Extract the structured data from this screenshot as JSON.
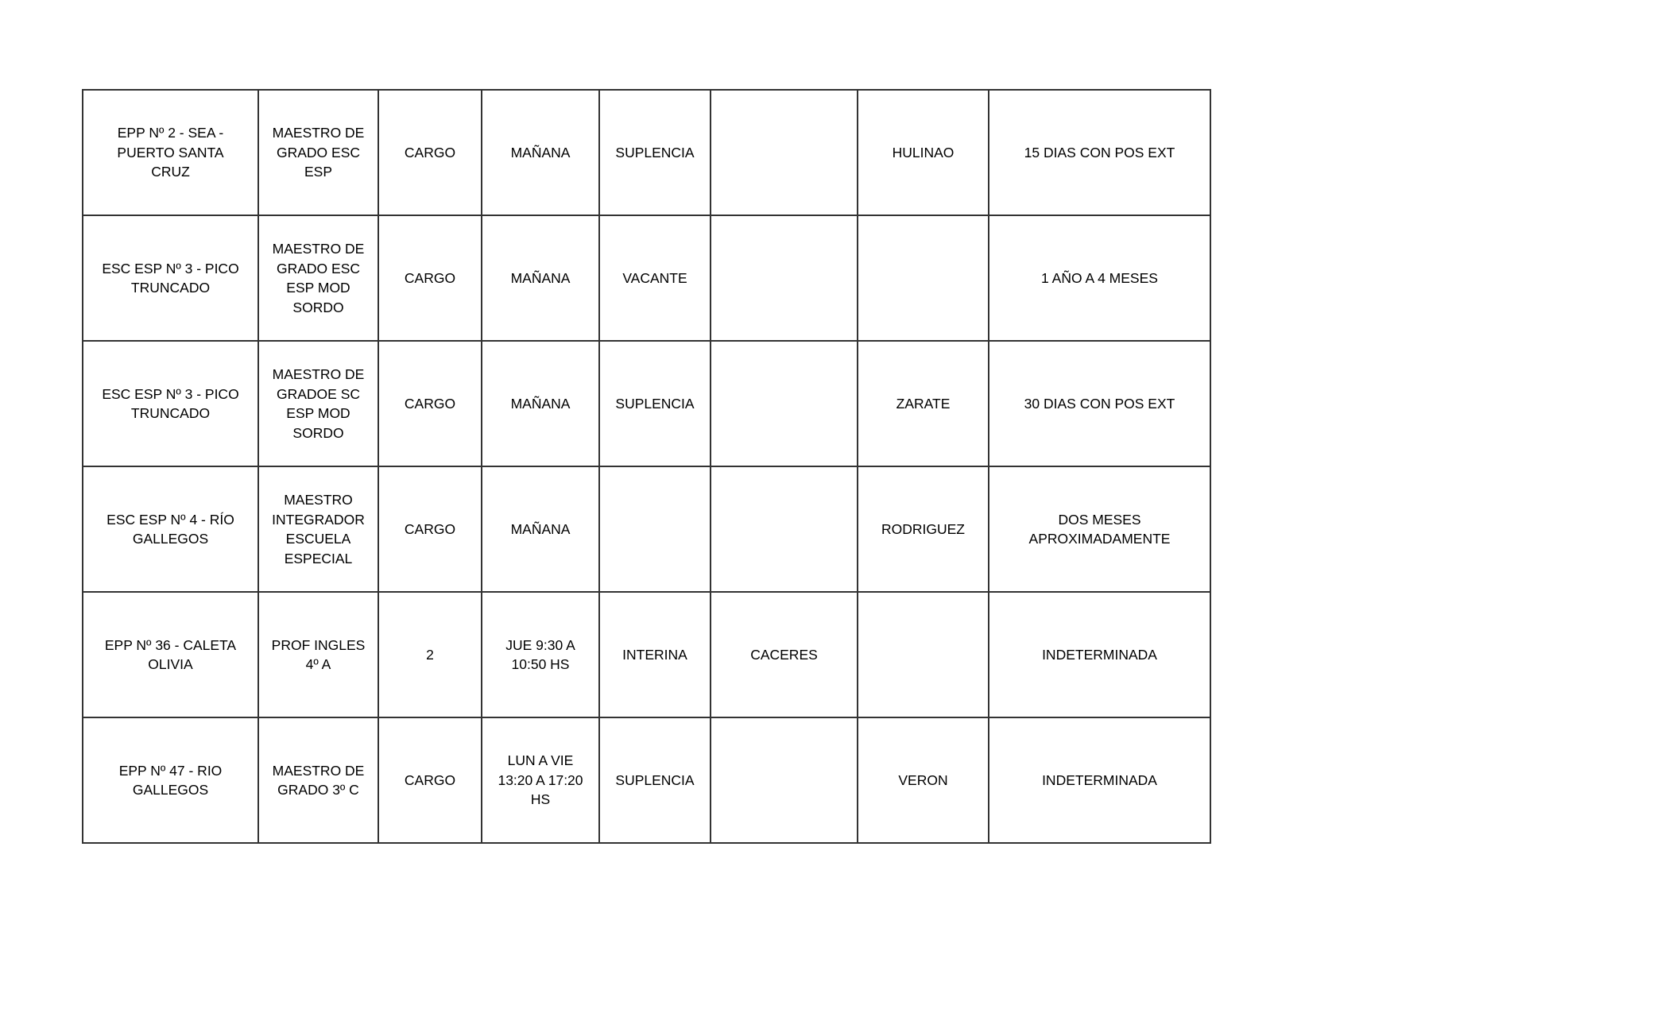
{
  "page": {
    "background_color": "#ffffff",
    "border_color": "#333333",
    "text_color": "#000000",
    "description": "Listado de cargos docentes en establecimientos escolares"
  },
  "table": {
    "rows": [
      {
        "cells": [
          "EPP Nº 2 - SEA -\nPUERTO SANTA\nCRUZ",
          "MAESTRO DE\nGRADO ESC\nESP",
          "CARGO",
          "MAÑANA",
          "SUPLENCIA",
          "",
          "HULINAO",
          "15 DIAS CON POS EXT"
        ]
      },
      {
        "cells": [
          "ESC ESP Nº 3 - PICO\nTRUNCADO",
          "MAESTRO DE\nGRADO ESC\nESP MOD\nSORDO",
          "CARGO",
          "MAÑANA",
          "VACANTE",
          "",
          "",
          "1 AÑO A 4 MESES"
        ]
      },
      {
        "cells": [
          "ESC ESP Nº 3 - PICO\nTRUNCADO",
          "MAESTRO DE\nGRADOE SC\nESP MOD\nSORDO",
          "CARGO",
          "MAÑANA",
          "SUPLENCIA",
          "",
          "ZARATE",
          "30 DIAS CON POS EXT"
        ]
      },
      {
        "cells": [
          "ESC ESP Nº 4 - RÍO\nGALLEGOS",
          "MAESTRO\nINTEGRADOR\nESCUELA\nESPECIAL",
          "CARGO",
          "MAÑANA",
          "",
          "",
          "RODRIGUEZ",
          "DOS MESES\nAPROXIMADAMENTE"
        ]
      },
      {
        "cells": [
          "EPP Nº 36 - CALETA\nOLIVIA",
          "PROF INGLES\n4º A",
          "2",
          "JUE 9:30 A\n10:50 HS",
          "INTERINA",
          "CACERES",
          "",
          "INDETERMINADA"
        ]
      },
      {
        "cells": [
          "EPP Nº 47 - RIO\nGALLEGOS",
          "MAESTRO DE\nGRADO 3º C",
          "CARGO",
          "LUN A VIE\n13:20 A 17:20\nHS",
          "SUPLENCIA",
          "",
          "VERON",
          "INDETERMINADA"
        ]
      }
    ]
  }
}
